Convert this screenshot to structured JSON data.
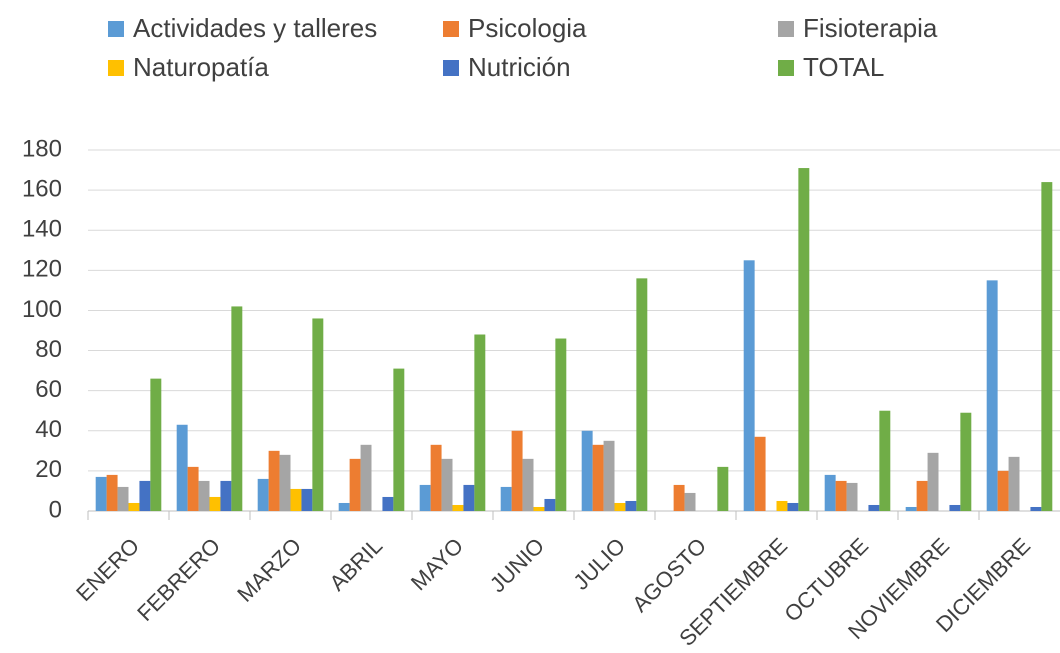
{
  "chart_data": {
    "type": "bar",
    "categories": [
      "ENERO",
      "FEBRERO",
      "MARZO",
      "ABRIL",
      "MAYO",
      "JUNIO",
      "JULIO",
      "AGOSTO",
      "SEPTIEMBRE",
      "OCTUBRE",
      "NOVIEMBRE",
      "DICIEMBRE"
    ],
    "series": [
      {
        "name": "Actividades y talleres",
        "color": "#5b9bd5",
        "values": [
          17,
          43,
          16,
          4,
          13,
          12,
          40,
          0,
          125,
          18,
          2,
          115
        ]
      },
      {
        "name": "Psicologia",
        "color": "#ed7d31",
        "values": [
          18,
          22,
          30,
          26,
          33,
          40,
          33,
          13,
          37,
          15,
          15,
          20
        ]
      },
      {
        "name": "Fisioterapia",
        "color": "#a5a5a5",
        "values": [
          12,
          15,
          28,
          33,
          26,
          26,
          35,
          9,
          0,
          14,
          29,
          27
        ]
      },
      {
        "name": "Naturopatía",
        "color": "#ffc000",
        "values": [
          4,
          7,
          11,
          0,
          3,
          2,
          4,
          0,
          5,
          0,
          0,
          0
        ]
      },
      {
        "name": "Nutrición",
        "color": "#4472c4",
        "values": [
          15,
          15,
          11,
          7,
          13,
          6,
          5,
          0,
          4,
          3,
          3,
          2
        ]
      },
      {
        "name": "TOTAL",
        "color": "#70ad47",
        "values": [
          66,
          102,
          96,
          71,
          88,
          86,
          116,
          22,
          171,
          50,
          49,
          164
        ]
      }
    ],
    "ylim": [
      0,
      180
    ],
    "yticks": [
      0,
      20,
      40,
      60,
      80,
      100,
      120,
      140,
      160,
      180
    ],
    "grid": true,
    "legend": "top"
  }
}
